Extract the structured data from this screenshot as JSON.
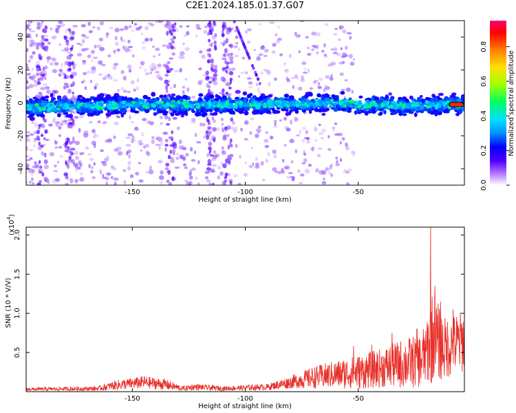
{
  "title": "C2E1.2024.185.01.37.G07",
  "colors": {
    "snr_line": "#e8302a",
    "spectrum_band": "#3a0cff",
    "spectrum_haze": "#c9a4f0",
    "spectrum_peak": "#00e0d0",
    "spectrum_hot": "#ff3030"
  },
  "chart_data": [
    {
      "type": "heatmap",
      "xlabel": "Height of straight line (km)",
      "ylabel": "Frequency (Hz)",
      "xlim": [
        -197,
        -3
      ],
      "ylim": [
        -50,
        50
      ],
      "x_ticks": [
        -150,
        -100,
        -50
      ],
      "y_ticks": [
        -40,
        -20,
        0,
        20,
        40
      ],
      "colorbar": {
        "label": "Normalized spectral amplitude",
        "range": [
          0,
          0.95
        ],
        "ticks": [
          "0.0",
          "0.2",
          "0.4",
          "0.6",
          "0.8"
        ],
        "tick_values": [
          0,
          0.2,
          0.4,
          0.6,
          0.8
        ],
        "colormap": [
          {
            "v": 0.0,
            "c": "#ffffff"
          },
          {
            "v": 0.07,
            "c": "#b070ff"
          },
          {
            "v": 0.14,
            "c": "#5000ff"
          },
          {
            "v": 0.22,
            "c": "#0000ff"
          },
          {
            "v": 0.3,
            "c": "#0090ff"
          },
          {
            "v": 0.38,
            "c": "#00e0ff"
          },
          {
            "v": 0.48,
            "c": "#00ff60"
          },
          {
            "v": 0.58,
            "c": "#a0ff00"
          },
          {
            "v": 0.68,
            "c": "#ffe000"
          },
          {
            "v": 0.78,
            "c": "#ff8000"
          },
          {
            "v": 0.88,
            "c": "#ff0000"
          },
          {
            "v": 0.95,
            "c": "#ff0070"
          }
        ]
      },
      "band": {
        "center_hz": [
          {
            "x": -197,
            "y": -3
          },
          {
            "x": -150,
            "y": -1
          },
          {
            "x": -100,
            "y": -1
          },
          {
            "x": -60,
            "y": 0
          },
          {
            "x": -30,
            "y": -2
          },
          {
            "x": -15,
            "y": -1
          },
          {
            "x": -3,
            "y": -1
          }
        ],
        "half_width_hz": 8,
        "peak_amplitude": 0.45,
        "hot_end": {
          "x_from": -10,
          "x_to": -3,
          "amplitude": 0.85
        }
      },
      "diagonal_streak": {
        "from": {
          "x": -105,
          "y": 50
        },
        "to": {
          "x": -93,
          "y": 10
        }
      },
      "vertical_streaks_x": [
        -190,
        -178,
        -133,
        -115,
        -108
      ]
    },
    {
      "type": "line",
      "xlabel": "Height of straight line (km)",
      "ylabel": "SNR (10 * V/V)",
      "y_multiplier": "(x10",
      "y_multiplier_exp": "4",
      "y_multiplier_close": ")",
      "xlim": [
        -197,
        -3
      ],
      "ylim": [
        0,
        2.1
      ],
      "x_ticks": [
        -150,
        -100,
        -50
      ],
      "y_ticks": [
        0.5,
        1.0,
        1.5,
        2.0
      ],
      "y_tick_labels": [
        "0.5",
        "1.0",
        "1.5",
        "2.0"
      ],
      "series": [
        {
          "envelope": [
            {
              "x": -197,
              "mean": 0.03,
              "amp": 0.02
            },
            {
              "x": -165,
              "mean": 0.04,
              "amp": 0.03
            },
            {
              "x": -158,
              "mean": 0.08,
              "amp": 0.06
            },
            {
              "x": -145,
              "mean": 0.12,
              "amp": 0.08
            },
            {
              "x": -135,
              "mean": 0.09,
              "amp": 0.07
            },
            {
              "x": -128,
              "mean": 0.04,
              "amp": 0.03
            },
            {
              "x": -122,
              "mean": 0.06,
              "amp": 0.04
            },
            {
              "x": -110,
              "mean": 0.04,
              "amp": 0.03
            },
            {
              "x": -90,
              "mean": 0.06,
              "amp": 0.04
            },
            {
              "x": -80,
              "mean": 0.12,
              "amp": 0.08
            },
            {
              "x": -70,
              "mean": 0.18,
              "amp": 0.14
            },
            {
              "x": -60,
              "mean": 0.22,
              "amp": 0.18
            },
            {
              "x": -50,
              "mean": 0.25,
              "amp": 0.22
            },
            {
              "x": -40,
              "mean": 0.3,
              "amp": 0.25
            },
            {
              "x": -30,
              "mean": 0.36,
              "amp": 0.32
            },
            {
              "x": -22,
              "mean": 0.4,
              "amp": 0.35
            },
            {
              "x": -17,
              "mean": 0.7,
              "amp": 0.6
            },
            {
              "x": -12,
              "mean": 0.55,
              "amp": 0.4
            },
            {
              "x": -3,
              "mean": 0.65,
              "amp": 0.4
            }
          ],
          "spikes": [
            {
              "x": -18,
              "y": 2.1
            },
            {
              "x": -16,
              "y": 1.35
            },
            {
              "x": -13.5,
              "y": 1.15
            },
            {
              "x": -8,
              "y": 1.05
            },
            {
              "x": -20,
              "y": 0.55
            },
            {
              "x": -24,
              "y": 0.8
            },
            {
              "x": -35,
              "y": 0.75
            },
            {
              "x": -44,
              "y": 0.6
            },
            {
              "x": -52,
              "y": 0.58
            }
          ]
        }
      ]
    }
  ]
}
